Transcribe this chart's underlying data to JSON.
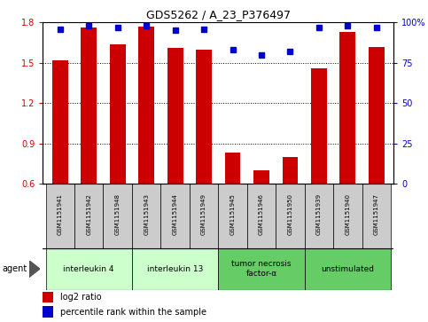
{
  "title": "GDS5262 / A_23_P376497",
  "samples": [
    "GSM1151941",
    "GSM1151942",
    "GSM1151948",
    "GSM1151943",
    "GSM1151944",
    "GSM1151949",
    "GSM1151945",
    "GSM1151946",
    "GSM1151950",
    "GSM1151939",
    "GSM1151940",
    "GSM1151947"
  ],
  "log2_ratio": [
    1.52,
    1.76,
    1.64,
    1.77,
    1.61,
    1.6,
    0.83,
    0.7,
    0.8,
    1.46,
    1.73,
    1.62
  ],
  "percentile_rank": [
    96,
    98,
    97,
    98,
    95,
    96,
    83,
    80,
    82,
    97,
    98,
    97
  ],
  "bar_color": "#cc0000",
  "dot_color": "#0000cc",
  "ylim_left": [
    0.6,
    1.8
  ],
  "ylim_right": [
    0,
    100
  ],
  "yticks_left": [
    0.6,
    0.9,
    1.2,
    1.5,
    1.8
  ],
  "yticks_right": [
    0,
    25,
    50,
    75,
    100
  ],
  "ytick_labels_right": [
    "0",
    "25",
    "50",
    "75",
    "100%"
  ],
  "groups": [
    {
      "label": "interleukin 4",
      "start": 0,
      "end": 3,
      "color": "#ccffcc"
    },
    {
      "label": "interleukin 13",
      "start": 3,
      "end": 6,
      "color": "#ccffcc"
    },
    {
      "label": "tumor necrosis\nfactor-α",
      "start": 6,
      "end": 9,
      "color": "#66cc66"
    },
    {
      "label": "unstimulated",
      "start": 9,
      "end": 12,
      "color": "#66cc66"
    }
  ],
  "agent_label": "agent",
  "legend_log2": "log2 ratio",
  "legend_pct": "percentile rank within the sample",
  "bar_width": 0.55,
  "bg_color": "#ffffff",
  "left_label_color": "#cc0000",
  "right_label_color": "#0000cc",
  "sample_box_color": "#cccccc",
  "figsize": [
    4.83,
    3.63
  ],
  "dpi": 100
}
